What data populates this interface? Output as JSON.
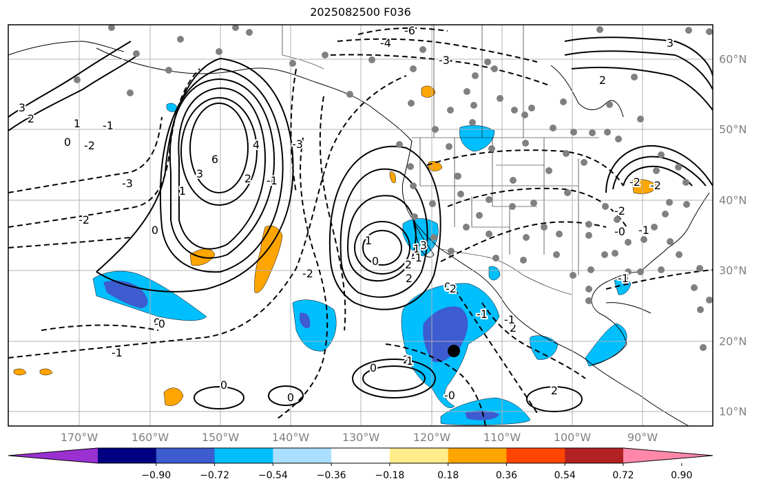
{
  "title": "2025082500 F036",
  "map": {
    "lon_labels": [
      "170°W",
      "160°W",
      "150°W",
      "140°W",
      "130°W",
      "120°W",
      "110°W",
      "100°W",
      "90°W"
    ],
    "lat_labels": [
      "60°N",
      "50°N",
      "40°N",
      "30°N",
      "20°N",
      "10°N"
    ],
    "contour_labels_solid": [
      "2",
      "3",
      "4",
      "6",
      "3",
      "2",
      "1",
      "0",
      "1",
      "0",
      "2",
      "2",
      "1",
      "0",
      "3",
      "2",
      "0",
      "3",
      "2",
      "1",
      "0",
      "0",
      "1",
      "0",
      "0",
      "2",
      "2",
      "3"
    ],
    "contour_labels_dashed": [
      "-6",
      "-4",
      "-3",
      "-3",
      "-2",
      "-1",
      "-0",
      "-1",
      "-2",
      "-3",
      "-2",
      "-1",
      "-1",
      "-2",
      "-1",
      "-0",
      "-1",
      "-0",
      "-1",
      "-2",
      "-2",
      "-1",
      "-2"
    ],
    "colors": {
      "land_outline": "#000000",
      "grid": "#b0b0b0",
      "station_dot": "#808080"
    }
  },
  "colorbar": {
    "tick_labels": [
      "−0.90",
      "−0.72",
      "−0.54",
      "−0.36",
      "−0.18",
      "0.18",
      "0.36",
      "0.54",
      "0.72",
      "0.90"
    ],
    "bins": [
      "#9b30d0",
      "#000080",
      "#3c5ccf",
      "#00bfff",
      "#aadfff",
      "#ffffff",
      "#ffec8b",
      "#ffa500",
      "#ff4500",
      "#b22222",
      "#ff88aa"
    ]
  }
}
